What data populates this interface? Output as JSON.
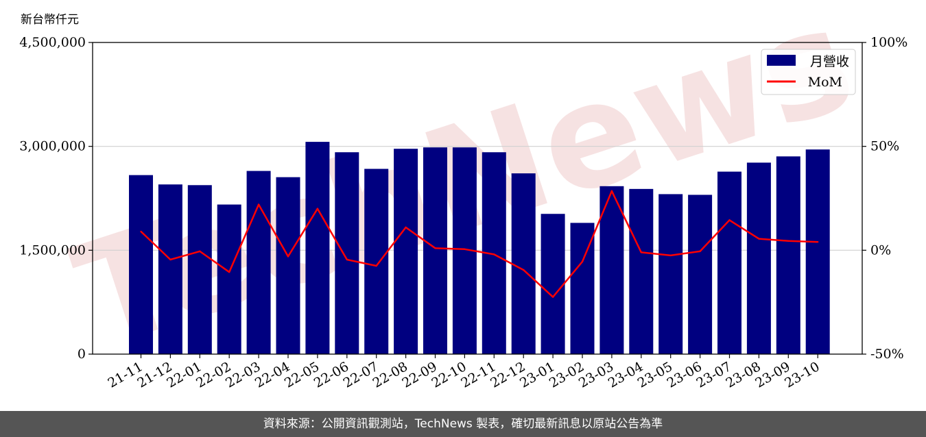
{
  "chart_data": {
    "type": "bar",
    "unit_label": "新台幣仟元",
    "categories": [
      "21-11",
      "21-12",
      "22-01",
      "22-02",
      "22-03",
      "22-04",
      "22-05",
      "22-06",
      "22-07",
      "22-08",
      "22-09",
      "22-10",
      "22-11",
      "22-12",
      "23-01",
      "23-02",
      "23-03",
      "23-04",
      "23-05",
      "23-06",
      "23-07",
      "23-08",
      "23-09",
      "23-10"
    ],
    "series": [
      {
        "name": "月營收",
        "type": "bar",
        "axis": "left",
        "color": "#000080",
        "values": [
          2585000,
          2450000,
          2440000,
          2160000,
          2645000,
          2555000,
          3065000,
          2915000,
          2675000,
          2965000,
          2985000,
          2985000,
          2915000,
          2610000,
          2025000,
          1895000,
          2425000,
          2385000,
          2310000,
          2300000,
          2635000,
          2765000,
          2855000,
          2955000
        ]
      },
      {
        "name": "MoM",
        "type": "line",
        "axis": "right",
        "color": "#ff0000",
        "values": [
          9,
          -4.5,
          -0.5,
          -10.5,
          22,
          -3,
          20,
          -4.5,
          -7.5,
          11,
          1,
          0.5,
          -2,
          -9.5,
          -22.5,
          -5.5,
          28.5,
          -1,
          -2.5,
          -0.5,
          14.5,
          5.5,
          4.5,
          4
        ]
      }
    ],
    "ylim_left": [
      0,
      4500000
    ],
    "ylim_right": [
      -50,
      100
    ],
    "yticks_left": [
      "0",
      "1,500,000",
      "3,000,000",
      "4,500,000"
    ],
    "yticks_left_values": [
      0,
      1500000,
      3000000,
      4500000
    ],
    "yticks_right": [
      "-50%",
      "0%",
      "50%",
      "100%"
    ],
    "yticks_right_values": [
      -50,
      0,
      50,
      100
    ],
    "grid": "horizontal",
    "legend_position": "top-right"
  },
  "watermark": "TechNews",
  "footer_text": "資料來源：公開資訊觀測站，TechNews 製表，確切最新訊息以原站公告為準"
}
